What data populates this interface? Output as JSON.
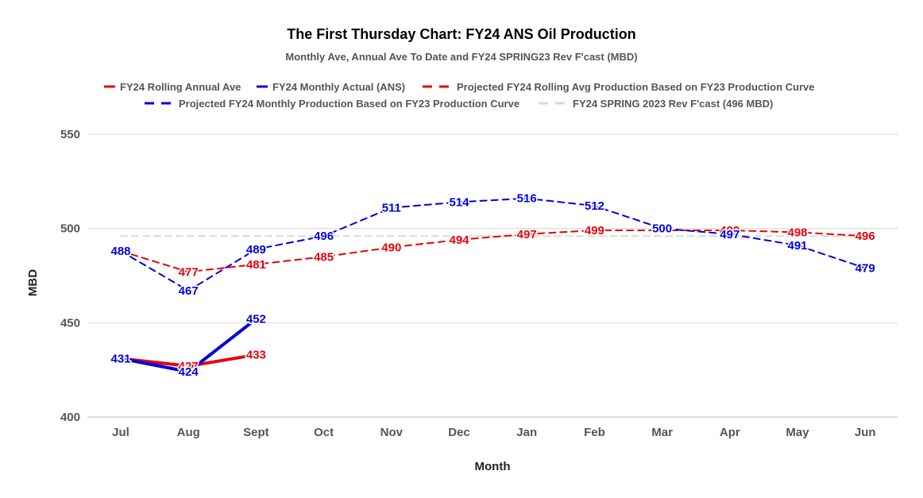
{
  "chart_data": {
    "type": "line",
    "title": "The First Thursday Chart: FY24 ANS Oil Production",
    "subtitle": "Monthly Ave, Annual Ave To Date and FY24 SPRING23 Rev F'cast (MBD)",
    "xlabel": "Month",
    "ylabel": "MBD",
    "ylim": [
      400,
      550
    ],
    "yticks": [
      400,
      450,
      500,
      550
    ],
    "grid": true,
    "legend_position": "top",
    "categories": [
      "Jul",
      "Aug",
      "Sept",
      "Oct",
      "Nov",
      "Dec",
      "Jan",
      "Feb",
      "Mar",
      "Apr",
      "May",
      "Jun"
    ],
    "series": [
      {
        "key": "rolling",
        "name": "FY24 Rolling Annual Ave",
        "color": "#e8000b",
        "style": "solid",
        "values": [
          431,
          427,
          433,
          null,
          null,
          null,
          null,
          null,
          null,
          null,
          null,
          null
        ],
        "labels": [
          "431",
          "427",
          "433",
          "",
          "",
          "",
          "",
          "",
          "",
          "",
          "",
          ""
        ],
        "show_labels": [
          false,
          true,
          true,
          false,
          false,
          false,
          false,
          false,
          false,
          false,
          false,
          false
        ]
      },
      {
        "key": "monthly",
        "name": "FY24 Monthly Actual (ANS)",
        "color": "#0000dd",
        "style": "solid",
        "values": [
          431,
          424,
          452,
          null,
          null,
          null,
          null,
          null,
          null,
          null,
          null,
          null
        ],
        "labels": [
          "431",
          "424",
          "452",
          "",
          "",
          "",
          "",
          "",
          "",
          "",
          "",
          ""
        ],
        "show_labels": [
          true,
          true,
          true,
          false,
          false,
          false,
          false,
          false,
          false,
          false,
          false,
          false
        ]
      },
      {
        "key": "proj_rolling",
        "name": "Projected FY24 Rolling Avg Production Based on FY23 Production Curve",
        "color": "#e8000b",
        "style": "dashed",
        "values": [
          488,
          477,
          481,
          485,
          490,
          494,
          497,
          499,
          499,
          499,
          498,
          496
        ],
        "labels": [
          "488",
          "477",
          "481",
          "485",
          "490",
          "494",
          "497",
          "499",
          "499",
          "499",
          "498",
          "496"
        ],
        "show_labels": [
          false,
          true,
          true,
          true,
          true,
          true,
          true,
          true,
          false,
          true,
          true,
          true
        ]
      },
      {
        "key": "proj_monthly",
        "name": "Projected FY24 Monthly Production Based on FY23 Production Curve",
        "color": "#0000dd",
        "style": "dashed",
        "values": [
          488,
          467,
          489,
          496,
          511,
          514,
          516,
          512,
          500,
          497,
          491,
          479
        ],
        "labels": [
          "488",
          "467",
          "489",
          "496",
          "511",
          "514",
          "516",
          "512",
          "500",
          "497",
          "491",
          "479"
        ],
        "show_labels": [
          true,
          true,
          true,
          true,
          true,
          true,
          true,
          true,
          true,
          true,
          true,
          true
        ]
      },
      {
        "key": "forecast",
        "name": "FY24 SPRING 2023 Rev F'cast (496 MBD)",
        "color": "#d9d9d9",
        "style": "dashed",
        "values": [
          496,
          496,
          496,
          496,
          496,
          496,
          496,
          496,
          496,
          496,
          496,
          496
        ],
        "labels": [],
        "show_labels": []
      }
    ]
  }
}
